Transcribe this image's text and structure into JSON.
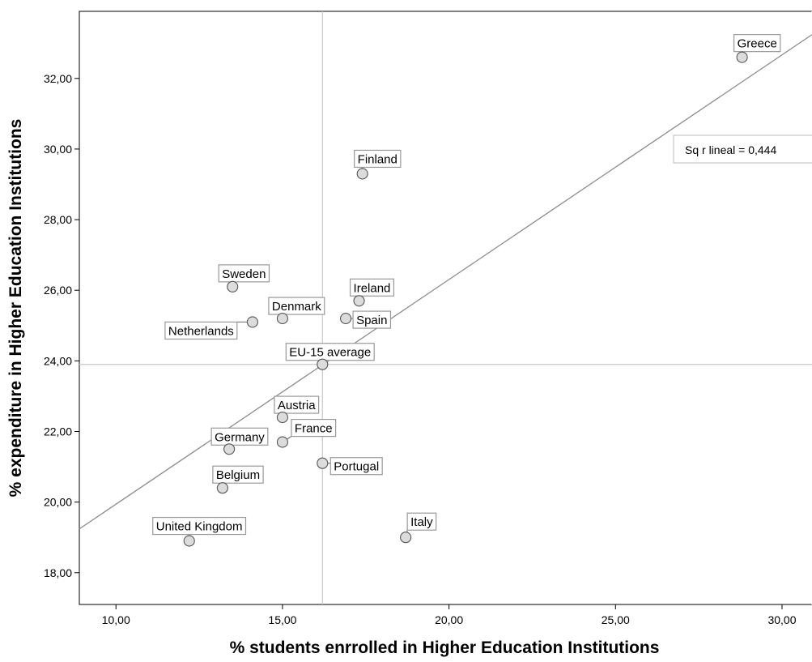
{
  "chart_data": {
    "type": "scatter",
    "xlabel": "% students enrrolled in Higher Education Institutions",
    "ylabel": "% expenditure in Higher Education Institutions",
    "xlim": [
      8.9,
      30.9
    ],
    "ylim": [
      17.1,
      33.9
    ],
    "x_ticks": [
      10,
      15,
      20,
      25,
      30
    ],
    "y_ticks": [
      18,
      20,
      22,
      24,
      26,
      28,
      30,
      32
    ],
    "x_tick_labels": [
      "10,00",
      "15,00",
      "20,00",
      "25,00",
      "30,00"
    ],
    "y_tick_labels": [
      "18,00",
      "20,00",
      "22,00",
      "24,00",
      "26,00",
      "28,00",
      "30,00",
      "32,00"
    ],
    "grid": false,
    "reference_lines": {
      "x": 16.2,
      "y": 23.9
    },
    "fit_line": {
      "label": "Sq r lineal = 0,444",
      "x": [
        8.9,
        30.9
      ],
      "y": [
        19.24,
        33.24
      ]
    },
    "points": [
      {
        "label": "Greece",
        "x": 28.8,
        "y": 32.6
      },
      {
        "label": "Finland",
        "x": 17.4,
        "y": 29.3
      },
      {
        "label": "Sweden",
        "x": 13.5,
        "y": 26.1
      },
      {
        "label": "Ireland",
        "x": 17.3,
        "y": 25.7
      },
      {
        "label": "Denmark",
        "x": 15.0,
        "y": 25.2
      },
      {
        "label": "Spain",
        "x": 16.9,
        "y": 25.2
      },
      {
        "label": "Netherlands",
        "x": 14.1,
        "y": 25.1
      },
      {
        "label": "EU-15 average",
        "x": 16.2,
        "y": 23.9
      },
      {
        "label": "Austria",
        "x": 15.0,
        "y": 22.4
      },
      {
        "label": "France",
        "x": 15.0,
        "y": 21.7
      },
      {
        "label": "Germany",
        "x": 13.4,
        "y": 21.5
      },
      {
        "label": "Portugal",
        "x": 16.2,
        "y": 21.1
      },
      {
        "label": "Belgium",
        "x": 13.2,
        "y": 20.4
      },
      {
        "label": "Italy",
        "x": 18.7,
        "y": 19.0
      },
      {
        "label": "United Kingdom",
        "x": 12.2,
        "y": 18.9
      }
    ]
  }
}
